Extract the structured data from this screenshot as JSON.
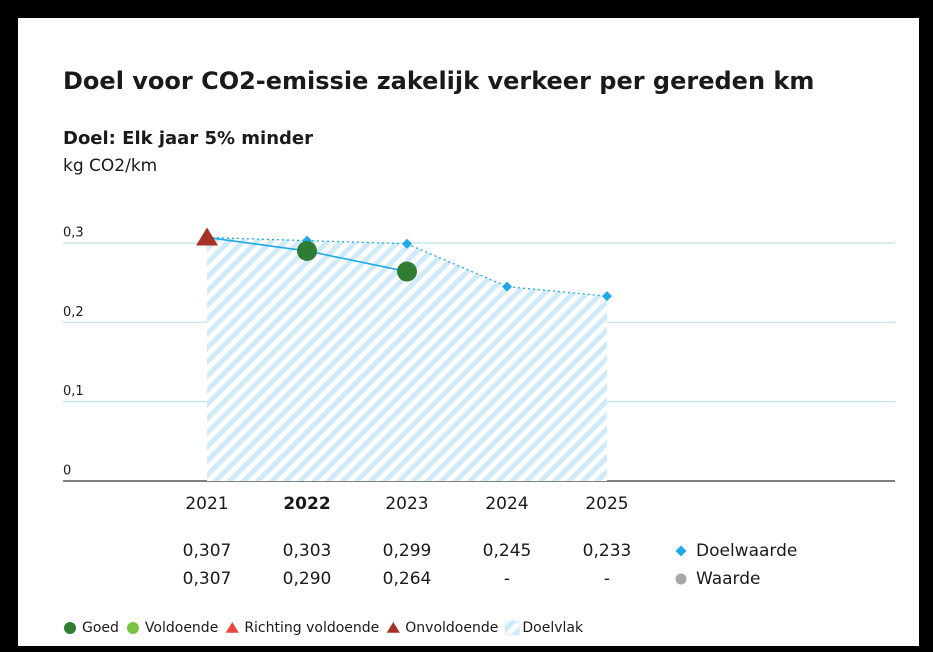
{
  "chart_data": {
    "type": "line",
    "title": "Doel voor CO2-emissie zakelijk verkeer per gereden km",
    "subtitle": "Doel: Elk jaar 5% minder",
    "unit": "kg CO2/km",
    "categories": [
      "2021",
      "2022",
      "2023",
      "2024",
      "2025"
    ],
    "highlight": 1,
    "ylim": [
      0,
      0.3
    ],
    "yticks": [
      {
        "value": 0,
        "label": "0"
      },
      {
        "value": 0.1,
        "label": "0,1"
      },
      {
        "value": 0.2,
        "label": "0,2"
      },
      {
        "value": 0.3,
        "label": "0,3"
      }
    ],
    "grid": true,
    "series": [
      {
        "name": "Doelwaarde",
        "color": "#1fa9e9",
        "marker": "diamond",
        "area": true,
        "values": [
          0.307,
          0.303,
          0.299,
          0.245,
          0.233
        ],
        "value_labels": [
          "0,307",
          "0,303",
          "0,299",
          "0,245",
          "0,233"
        ]
      },
      {
        "name": "Waarde",
        "color": "#1fa9e9",
        "legend_color": "#a8a8a8",
        "marker": "status",
        "values": [
          0.307,
          0.29,
          0.264,
          null,
          null
        ],
        "value_labels": [
          "0,307",
          "0,290",
          "0,264",
          "-",
          "-"
        ],
        "status": [
          "Onvoldoende",
          "Goed",
          "Goed",
          null,
          null
        ]
      }
    ],
    "status_legend": [
      {
        "name": "Goed",
        "color": "#2e7d32",
        "shape": "circle"
      },
      {
        "name": "Voldoende",
        "color": "#76c442",
        "shape": "circle"
      },
      {
        "name": "Richting voldoende",
        "color": "#e8473a",
        "shape": "triangle"
      },
      {
        "name": "Onvoldoende",
        "color": "#a93226",
        "shape": "triangle"
      }
    ],
    "area_legend": {
      "name": "Doelvlak",
      "color": "#bfe4f6"
    }
  }
}
